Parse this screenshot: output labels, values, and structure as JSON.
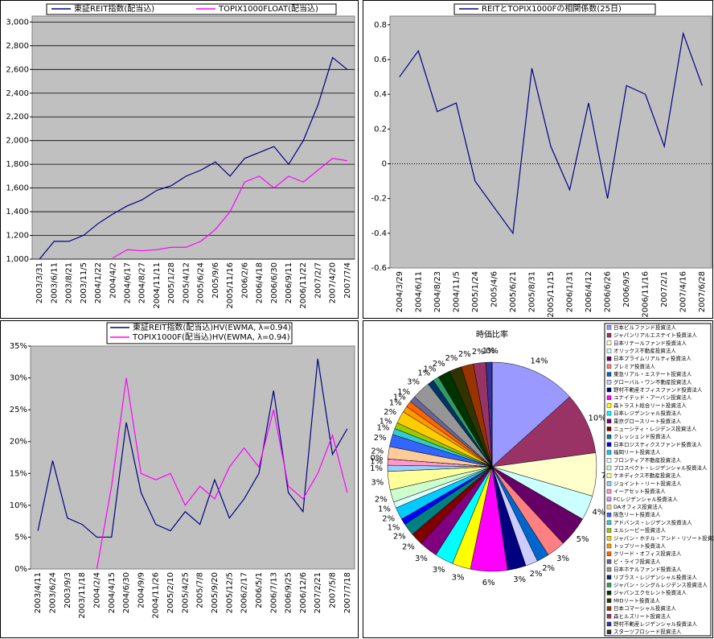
{
  "chart_data": [
    {
      "type": "line",
      "legend": "top",
      "grid": true,
      "categories": [
        "2003/3/31",
        "2003/6/11",
        "2003/8/21",
        "2003/11/5",
        "2004/1/22",
        "2004/4/2",
        "2004/6/17",
        "2004/8/27",
        "2004/11/11",
        "2005/1/28",
        "2005/4/12",
        "2005/6/24",
        "2005/9/6",
        "2005/11/16",
        "2006/2/6",
        "2006/4/18",
        "2006/6/30",
        "2006/9/11",
        "2006/11/22",
        "2007/2/7",
        "2007/4/20",
        "2007/7/4"
      ],
      "series": [
        {
          "name": "東証REIT指数(配当込)",
          "color": "#000080",
          "values": [
            1000,
            1150,
            1150,
            1200,
            1300,
            1380,
            1450,
            1500,
            1580,
            1620,
            1700,
            1750,
            1820,
            1700,
            1850,
            1900,
            1950,
            1800,
            2000,
            2300,
            2700,
            2600
          ]
        },
        {
          "name": "TOPIX1000FLOAT(配当込)",
          "color": "#ff00ff",
          "values": [
            null,
            null,
            null,
            null,
            null,
            1010,
            1080,
            1070,
            1080,
            1100,
            1100,
            1150,
            1250,
            1400,
            1650,
            1700,
            1600,
            1700,
            1650,
            1750,
            1850,
            1830
          ]
        }
      ],
      "ylim": [
        1000,
        3050
      ],
      "yticks": [
        {
          "value": 1000,
          "label": "1,000"
        },
        {
          "value": 1200,
          "label": "1,200"
        },
        {
          "value": 1400,
          "label": "1,400"
        },
        {
          "value": 1600,
          "label": "1,600"
        },
        {
          "value": 1800,
          "label": "1,800"
        },
        {
          "value": 2000,
          "label": "2,000"
        },
        {
          "value": 2200,
          "label": "2,200"
        },
        {
          "value": 2400,
          "label": "2,400"
        },
        {
          "value": 2600,
          "label": "2,600"
        },
        {
          "value": 2800,
          "label": "2,800"
        },
        {
          "value": 3000,
          "label": "3,000"
        }
      ]
    },
    {
      "type": "line",
      "legend": "top",
      "grid": false,
      "categories": [
        "2004/3/29",
        "2004/6/11",
        "2004/8/23",
        "2004/11/5",
        "2005/1/24",
        "2005/4/6",
        "2005/6/21",
        "2005/8/31",
        "2005/11/15",
        "2006/1/31",
        "2006/4/12",
        "2006/6/26",
        "2006/9/5",
        "2006/11/16",
        "2007/2/1",
        "2007/4/16",
        "2007/6/28"
      ],
      "series": [
        {
          "name": "REITとTOPIX1000Fの相関係数(25日)",
          "color": "#000080",
          "values": [
            0.5,
            0.65,
            0.3,
            0.35,
            -0.1,
            -0.25,
            -0.4,
            0.55,
            0.1,
            -0.15,
            0.35,
            -0.2,
            0.45,
            0.4,
            0.1,
            0.75,
            0.45
          ]
        }
      ],
      "ylim": [
        -0.6,
        0.85
      ],
      "yticks": [
        -0.6,
        -0.4,
        -0.2,
        0,
        0.2,
        0.4,
        0.6,
        0.8
      ]
    },
    {
      "type": "line",
      "legend": "top",
      "grid": false,
      "categories": [
        "2003/4/11",
        "2003/6/24",
        "2003/9/3",
        "2003/11/18",
        "2004/2/4",
        "2004/4/15",
        "2004/6/30",
        "2004/9/9",
        "2004/11/26",
        "2005/2/10",
        "2005/4/25",
        "2005/7/8",
        "2005/9/20",
        "2005/12/5",
        "2006/2/17",
        "2006/5/1",
        "2006/7/13",
        "2006/9/25",
        "2006/12/6",
        "2007/2/21",
        "2007/5/8",
        "2007/7/18"
      ],
      "series": [
        {
          "name": "東証REIT指数(配当込)HV(EWMA, λ=0.94)",
          "color": "#000080",
          "values": [
            6,
            17,
            8,
            7,
            5,
            5,
            23,
            12,
            7,
            6,
            9,
            7,
            14,
            8,
            11,
            15,
            28,
            12,
            9,
            33,
            18,
            22
          ]
        },
        {
          "name": "TOPIX1000F(配当込)HV(EWMA, λ=0.94)",
          "color": "#ff00ff",
          "values": [
            null,
            null,
            null,
            null,
            0,
            13,
            30,
            15,
            14,
            15,
            10,
            13,
            11,
            16,
            19,
            16,
            25,
            13,
            11,
            15,
            21,
            12
          ]
        }
      ],
      "ylim": [
        0,
        35
      ],
      "yticks": [
        {
          "value": 0,
          "label": "0%"
        },
        {
          "value": 5,
          "label": "5%"
        },
        {
          "value": 10,
          "label": "10%"
        },
        {
          "value": 15,
          "label": "15%"
        },
        {
          "value": 20,
          "label": "20%"
        },
        {
          "value": 25,
          "label": "25%"
        },
        {
          "value": 30,
          "label": "30%"
        },
        {
          "value": 35,
          "label": "35%"
        }
      ]
    },
    {
      "type": "pie",
      "title": "時価比率",
      "legend": "right",
      "categories": [
        "日本ビルファンド投資法人",
        "ジャパンリアルエステイト投資法人",
        "日本リテールファンド投資法人",
        "オリックス不動産投資法人",
        "日本プライムリアルティ投資法人",
        "プレミア投資法人",
        "東急リアル・エステート投資法人",
        "グローバル・ワン不動産投資法人",
        "野村不動産オフィスファンド投資法人",
        "ユナイテッド・アーバン投資法人",
        "森トラスト総合リート投資法人",
        "日本レジデンシャル投資法人",
        "東京グロースリート投資法人",
        "ニューシティ・レジデンス投資法人",
        "クレッシェンド投資法人",
        "日本ロジスティクスファンド投資法人",
        "福岡リート投資法人",
        "フロンティア不動産投資法人",
        "プロスペクト・レジデンシャル投資法人",
        "ケネディクス不動産投資法人",
        "ジョイント・リート投資法人",
        "イーアセット投資法人",
        "FCレジデンシャル投資法人",
        "DAオフィス投資法人",
        "阪急リート投資法人",
        "アドバンス・レジデンス投資法人",
        "エルシーピー投資法人",
        "ジャパン・ホテル・アンド・リゾート投資法人",
        "トップリート投資法人",
        "クリード・オフィス投資法人",
        "ビ・ライフ投資法人",
        "日本ホテルファンド投資法人",
        "リプラス・レジデンシャル投資法人",
        "ジャパン・シングルレジデンス投資法人",
        "ジャパンエクセレント投資法人",
        "MIDリート投資法人",
        "日本コマーシャル投資法人",
        "森ヒルズリート投資法人",
        "野村不動産レジデンシャル投資法人",
        "スターツプロシード投資法人"
      ],
      "values": [
        14,
        10,
        7,
        4,
        5,
        3,
        2,
        2,
        3,
        6,
        3,
        3,
        3,
        2,
        2,
        1,
        2,
        1,
        2,
        3,
        1,
        1,
        0,
        2,
        2,
        1,
        1,
        2,
        1,
        1,
        1,
        3,
        1,
        1,
        2,
        2,
        2,
        2,
        1,
        0
      ],
      "value_labels": [
        "14%",
        "10%",
        "7%",
        "4%",
        "5%",
        "3%",
        "2%",
        "2%",
        "3%",
        "6%",
        "3%",
        "3%",
        "3%",
        "2%",
        "2%",
        "1%",
        "2%",
        "1%",
        "2%",
        "3%",
        "1%",
        "1%",
        "0%",
        "2%",
        "2%",
        "1%",
        "1%",
        "2%",
        "1%",
        "1%",
        "1%",
        "3%",
        "1%",
        "1%",
        "2%",
        "2%",
        "2%",
        "2%",
        "1%",
        "0%"
      ],
      "colors": [
        "#9999ff",
        "#993366",
        "#ffffcc",
        "#ccffff",
        "#660066",
        "#ff8080",
        "#0066cc",
        "#ccccff",
        "#000080",
        "#ff00ff",
        "#ffff00",
        "#00ffff",
        "#800080",
        "#800000",
        "#008080",
        "#0000ff",
        "#00ccff",
        "#e0ffff",
        "#ccffcc",
        "#ffff99",
        "#99ccff",
        "#ff99cc",
        "#cc99ff",
        "#ffcc99",
        "#3366ff",
        "#33cccc",
        "#99cc00",
        "#ffcc00",
        "#ff9900",
        "#ff6600",
        "#666699",
        "#969696",
        "#003366",
        "#339966",
        "#003300",
        "#333300",
        "#993300",
        "#993366",
        "#333399",
        "#333333"
      ]
    }
  ]
}
